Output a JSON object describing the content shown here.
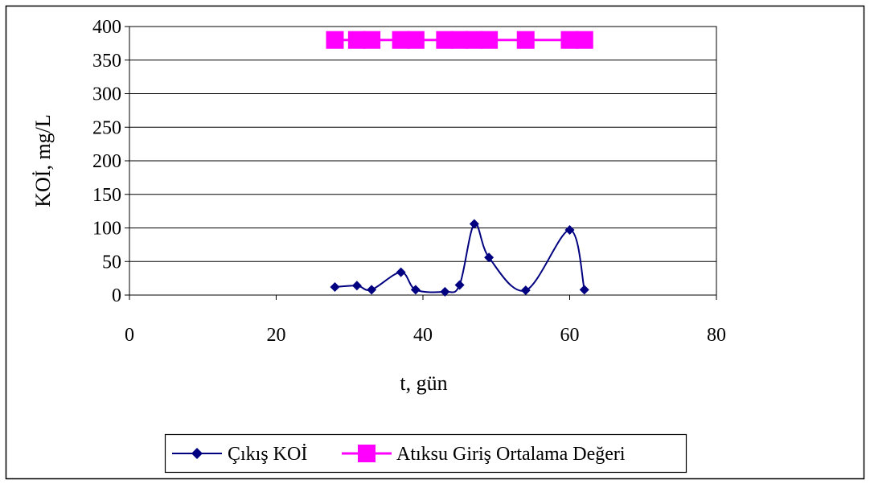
{
  "chart_data": {
    "type": "line",
    "xlabel": "t, gün",
    "ylabel": "KOİ, mg/L",
    "xlim": [
      0,
      80
    ],
    "ylim": [
      0,
      400
    ],
    "x_ticks": [
      "0",
      "20",
      "40",
      "60",
      "80"
    ],
    "y_ticks": [
      "0",
      "50",
      "100",
      "150",
      "200",
      "250",
      "300",
      "350",
      "400"
    ],
    "grid": "horizontal",
    "legend_position": "bottom",
    "series": [
      {
        "name": "Çıkış KOİ",
        "color": "#000080",
        "marker": "diamond",
        "smooth": true,
        "points": [
          {
            "x": 28,
            "y": 12
          },
          {
            "x": 31,
            "y": 14
          },
          {
            "x": 33,
            "y": 8
          },
          {
            "x": 37,
            "y": 34
          },
          {
            "x": 39,
            "y": 8
          },
          {
            "x": 43,
            "y": 5
          },
          {
            "x": 45,
            "y": 15
          },
          {
            "x": 47,
            "y": 106
          },
          {
            "x": 49,
            "y": 56
          },
          {
            "x": 54,
            "y": 7
          },
          {
            "x": 60,
            "y": 97
          },
          {
            "x": 62,
            "y": 8
          }
        ]
      },
      {
        "name": "Atıksu Giriş Ortalama Değeri",
        "color": "#FF00FF",
        "marker": "square",
        "smooth": false,
        "points": [
          {
            "x": 28,
            "y": 380
          },
          {
            "x": 31,
            "y": 380
          },
          {
            "x": 33,
            "y": 380
          },
          {
            "x": 37,
            "y": 380
          },
          {
            "x": 39,
            "y": 380
          },
          {
            "x": 43,
            "y": 380
          },
          {
            "x": 45,
            "y": 380
          },
          {
            "x": 47,
            "y": 380
          },
          {
            "x": 49,
            "y": 380
          },
          {
            "x": 54,
            "y": 380
          },
          {
            "x": 60,
            "y": 380
          },
          {
            "x": 62,
            "y": 380
          }
        ]
      }
    ]
  }
}
